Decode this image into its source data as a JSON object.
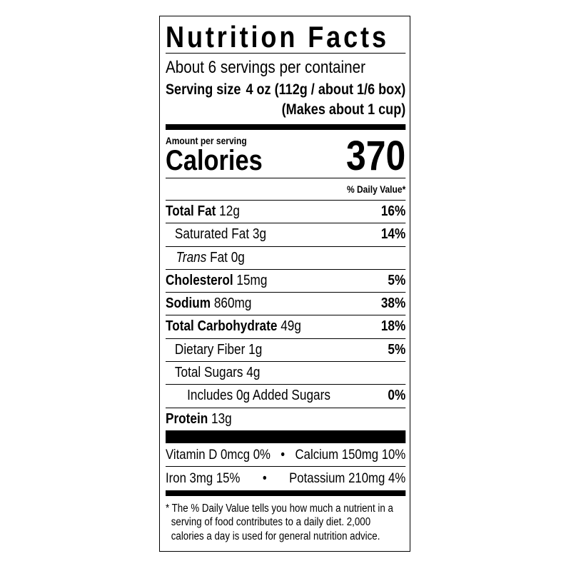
{
  "label": {
    "title": "Nutrition Facts",
    "servings_per_container": "About 6 servings per container",
    "serving_size_label": "Serving size",
    "serving_size_value": "4 oz (112g / about 1/6 box)",
    "serving_size_note": "(Makes about 1 cup)",
    "amount_per_serving": "Amount per serving",
    "calories_label": "Calories",
    "calories_value": "370",
    "daily_value_header": "% Daily Value*",
    "nutrients": [
      {
        "name": "Total Fat",
        "amount": "12g",
        "dv": "16%"
      },
      {
        "name": "Saturated Fat",
        "amount": "3g",
        "dv": "14%"
      },
      {
        "name": "Trans",
        "name_rest": "Fat",
        "amount": "0g",
        "dv": ""
      },
      {
        "name": "Cholesterol",
        "amount": "15mg",
        "dv": "5%"
      },
      {
        "name": "Sodium",
        "amount": "860mg",
        "dv": "38%"
      },
      {
        "name": "Total Carbohydrate",
        "amount": "49g",
        "dv": "18%"
      },
      {
        "name": "Dietary Fiber",
        "amount": "1g",
        "dv": "5%"
      },
      {
        "name": "Total Sugars",
        "amount": "4g",
        "dv": ""
      },
      {
        "name": "Includes 0g Added Sugars",
        "amount": "",
        "dv": "0%"
      },
      {
        "name": "Protein",
        "amount": "13g",
        "dv": ""
      }
    ],
    "vitamins": [
      {
        "left": "Vitamin D 0mcg 0%",
        "bullet": "•",
        "right": "Calcium 150mg 10%"
      },
      {
        "left": "Iron 3mg 15%",
        "bullet": "•",
        "right": "Potassium 210mg 4%"
      }
    ],
    "footnote": [
      "* The % Daily Value tells you how much a nutrient in a",
      "serving of food contributes to a daily diet. 2,000",
      "calories a day is used for general nutrition advice."
    ]
  }
}
